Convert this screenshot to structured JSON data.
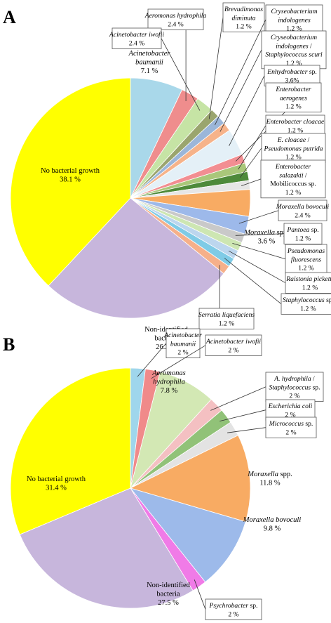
{
  "chart_data": [
    {
      "panel": "A",
      "type": "pie",
      "slices": [
        {
          "lines": [
            [
              {
                "t": "Acinetobacter",
                "i": true
              }
            ],
            [
              {
                "t": "baumanii",
                "i": true
              }
            ],
            [
              {
                "t": "7.1 %"
              }
            ]
          ],
          "value": 7.1,
          "color": "#a9d8ea",
          "inside": true
        },
        {
          "lines": [
            [
              {
                "t": "Aeromonas hydrophila",
                "i": true
              }
            ],
            [
              {
                "t": "2.4 %"
              }
            ]
          ],
          "value": 2.4,
          "color": "#ef8d8d"
        },
        {
          "lines": [
            [
              {
                "t": "Acinetobacter iwofii",
                "i": true
              }
            ],
            [
              {
                "t": "2.4 %"
              }
            ]
          ],
          "value": 2.4,
          "color": "#c6e4a5"
        },
        {
          "lines": [
            [
              {
                "t": "Brevudimonas",
                "i": true
              }
            ],
            [
              {
                "t": "diminuta",
                "i": true
              }
            ],
            [
              {
                "t": "1.2 %"
              }
            ]
          ],
          "value": 1.2,
          "color": "#9aa56e"
        },
        {
          "lines": [
            [
              {
                "t": "Cryseobacterium",
                "i": true
              }
            ],
            [
              {
                "t": "indologenes",
                "i": true
              }
            ],
            [
              {
                "t": "1.2 %"
              }
            ]
          ],
          "value": 1.2,
          "color": "#9bb6d9"
        },
        {
          "lines": [
            [
              {
                "t": "Cryseobacterium",
                "i": true
              }
            ],
            [
              {
                "t": "indologenes",
                "i": true
              },
              {
                "t": " /"
              }
            ],
            [
              {
                "t": "Staphylococcus scuri",
                "i": true
              }
            ],
            [
              {
                "t": "1.2 %"
              }
            ]
          ],
          "value": 1.2,
          "color": "#f6b38a"
        },
        {
          "lines": [
            [
              {
                "t": "Enhydrobacter",
                "i": true
              },
              {
                "t": " sp."
              }
            ],
            [
              {
                "t": "3.6%"
              }
            ]
          ],
          "value": 3.6,
          "color": "#e4f0f7"
        },
        {
          "lines": [
            [
              {
                "t": "Enterobacter",
                "i": true
              }
            ],
            [
              {
                "t": "aerogenes",
                "i": true
              }
            ],
            [
              {
                "t": "1.2 %"
              }
            ]
          ],
          "value": 1.2,
          "color": "#f28e92"
        },
        {
          "lines": [
            [
              {
                "t": "Enterobacter cloacae",
                "i": true
              }
            ],
            [
              {
                "t": "1.2 %"
              }
            ]
          ],
          "value": 1.2,
          "color": "#a9c77a"
        },
        {
          "lines": [
            [
              {
                "t": "E. cloacae",
                "i": true
              },
              {
                "t": " /"
              }
            ],
            [
              {
                "t": "Pseudomonas putrida",
                "i": true
              }
            ],
            [
              {
                "t": "1.2 %"
              }
            ]
          ],
          "value": 1.2,
          "color": "#4e8a3a"
        },
        {
          "lines": [
            [
              {
                "t": "Enterobacter",
                "i": true
              }
            ],
            [
              {
                "t": "salazakii",
                "i": true
              },
              {
                "t": " /"
              }
            ],
            [
              {
                "t": "Mobilicoccus sp."
              }
            ],
            [
              {
                "t": "1.2 %"
              }
            ]
          ],
          "value": 1.2,
          "color": "#e6e6e6"
        },
        {
          "lines": [
            [
              {
                "t": "Moraxella",
                "i": true
              },
              {
                "t": " spp."
              }
            ],
            [
              {
                "t": "3.6 %"
              }
            ]
          ],
          "value": 3.6,
          "color": "#f8ab63",
          "inside": true
        },
        {
          "lines": [
            [
              {
                "t": "Moraxella bovoculi",
                "i": true
              }
            ],
            [
              {
                "t": "2.4 %"
              }
            ]
          ],
          "value": 2.4,
          "color": "#9db9ea"
        },
        {
          "lines": [
            [
              {
                "t": "Pantoea",
                "i": true
              },
              {
                "t": " sp."
              }
            ],
            [
              {
                "t": "1.2 %"
              }
            ]
          ],
          "value": 1.2,
          "color": "#c9c9c9"
        },
        {
          "lines": [
            [
              {
                "t": "Pseudomonas",
                "i": true
              }
            ],
            [
              {
                "t": "fluorescens",
                "i": true
              }
            ],
            [
              {
                "t": "1.2 %"
              }
            ]
          ],
          "value": 1.2,
          "color": "#cde6b2"
        },
        {
          "lines": [
            [
              {
                "t": "Raistonia picketti",
                "i": true
              }
            ],
            [
              {
                "t": "1.2 %"
              }
            ]
          ],
          "value": 1.2,
          "color": "#bcd6ee"
        },
        {
          "lines": [
            [
              {
                "t": "Staphylococcus",
                "i": true
              },
              {
                "t": " sp."
              }
            ],
            [
              {
                "t": "1.2 %"
              }
            ]
          ],
          "value": 1.2,
          "color": "#7fcbe6"
        },
        {
          "lines": [
            [
              {
                "t": "Serratia liquefaciens",
                "i": true
              }
            ],
            [
              {
                "t": "1.2 %"
              }
            ]
          ],
          "value": 1.2,
          "color": "#f6b08a"
        },
        {
          "lines": [
            [
              {
                "t": "Non-identified"
              }
            ],
            [
              {
                "t": "bacteria"
              }
            ],
            [
              {
                "t": "26.2 %"
              }
            ]
          ],
          "value": 26.2,
          "color": "#c7b6dc",
          "inside": true
        },
        {
          "lines": [
            [
              {
                "t": "No bacterial growth"
              }
            ],
            [
              {
                "t": "38.1 %"
              }
            ]
          ],
          "value": 38.1,
          "color": "#ffff00",
          "inside": true
        }
      ]
    },
    {
      "panel": "B",
      "type": "pie",
      "slices": [
        {
          "lines": [
            [
              {
                "t": "Acinetobacter",
                "i": true
              }
            ],
            [
              {
                "t": "baumanii",
                "i": true
              }
            ],
            [
              {
                "t": "2 %"
              }
            ]
          ],
          "value": 2,
          "color": "#9fd6ec"
        },
        {
          "lines": [
            [
              {
                "t": "Acinetobacter iwofii",
                "i": true
              }
            ],
            [
              {
                "t": "2 %"
              }
            ]
          ],
          "value": 2,
          "color": "#f08a8a"
        },
        {
          "lines": [
            [
              {
                "t": "Aeromonas",
                "i": true
              }
            ],
            [
              {
                "t": "hydrophila",
                "i": true
              }
            ],
            [
              {
                "t": "7.8 %"
              }
            ]
          ],
          "value": 7.8,
          "color": "#d3e8b4",
          "inside": true
        },
        {
          "lines": [
            [
              {
                "t": "A. hydrophila",
                "i": true
              },
              {
                "t": " /"
              }
            ],
            [
              {
                "t": "Staphylococcus",
                "i": true
              },
              {
                "t": " sp."
              }
            ],
            [
              {
                "t": "2 %"
              }
            ]
          ],
          "value": 2,
          "color": "#f4c0c2"
        },
        {
          "lines": [
            [
              {
                "t": "Escherichia coli",
                "i": true
              }
            ],
            [
              {
                "t": "2 %"
              }
            ]
          ],
          "value": 2,
          "color": "#91c278"
        },
        {
          "lines": [
            [
              {
                "t": "Micrococcus",
                "i": true
              },
              {
                "t": " sp."
              }
            ],
            [
              {
                "t": "2 %"
              }
            ]
          ],
          "value": 2,
          "color": "#e3e3e3"
        },
        {
          "lines": [
            [
              {
                "t": "Moraxella",
                "i": true
              },
              {
                "t": " spp."
              }
            ],
            [
              {
                "t": "11.8 %"
              }
            ]
          ],
          "value": 11.8,
          "color": "#f8ab63",
          "inside": true
        },
        {
          "lines": [
            [
              {
                "t": "Moraxella bovoculi",
                "i": true
              }
            ],
            [
              {
                "t": "9.8 %"
              }
            ]
          ],
          "value": 9.8,
          "color": "#9dbaea",
          "inside": true
        },
        {
          "lines": [
            [
              {
                "t": "Psychrobacter",
                "i": true
              },
              {
                "t": " sp."
              }
            ],
            [
              {
                "t": "2 %"
              }
            ]
          ],
          "value": 2,
          "color": "#f07be7"
        },
        {
          "lines": [
            [
              {
                "t": "Non-identified"
              }
            ],
            [
              {
                "t": "bacteria"
              }
            ],
            [
              {
                "t": "27.5 %"
              }
            ]
          ],
          "value": 27.5,
          "color": "#c7b6dc",
          "inside": true
        },
        {
          "lines": [
            [
              {
                "t": "No bacterial growth"
              }
            ],
            [
              {
                "t": "31.4 %"
              }
            ]
          ],
          "value": 31.4,
          "color": "#ffff00",
          "inside": true
        }
      ]
    }
  ]
}
